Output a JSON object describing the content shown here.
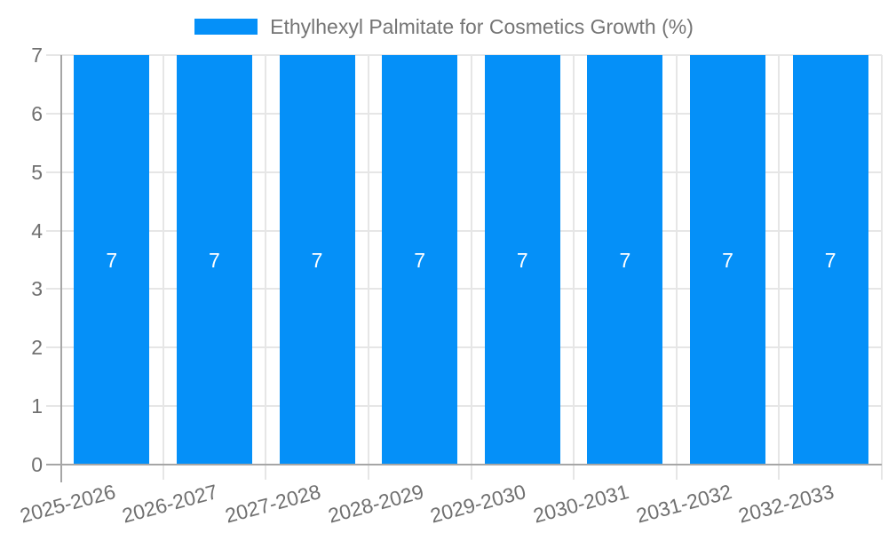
{
  "chart_data": {
    "type": "bar",
    "title": "",
    "legend_entries": [
      "Ethylhexyl Palmitate for Cosmetics Growth (%)"
    ],
    "legend_position": "top",
    "categories": [
      "2025-2026",
      "2026-2027",
      "2027-2028",
      "2028-2029",
      "2029-2030",
      "2030-2031",
      "2031-2032",
      "2032-2033"
    ],
    "series": [
      {
        "name": "Ethylhexyl Palmitate for Cosmetics Growth (%)",
        "values": [
          7,
          7,
          7,
          7,
          7,
          7,
          7,
          7
        ]
      }
    ],
    "data_labels": [
      "7",
      "7",
      "7",
      "7",
      "7",
      "7",
      "7",
      "7"
    ],
    "xlabel": "",
    "ylabel": "",
    "ylim": [
      0,
      7
    ],
    "yticks": [
      0,
      1,
      2,
      3,
      4,
      5,
      6,
      7
    ],
    "grid": true,
    "colors": {
      "bar": "#0590F8",
      "gridline": "#E6E6E6",
      "axis_line": "#A6A6A6",
      "axis_text": "#707070",
      "legend_text": "#757575",
      "data_label": "#FFFFFF",
      "background": "#FFFFFF"
    }
  }
}
